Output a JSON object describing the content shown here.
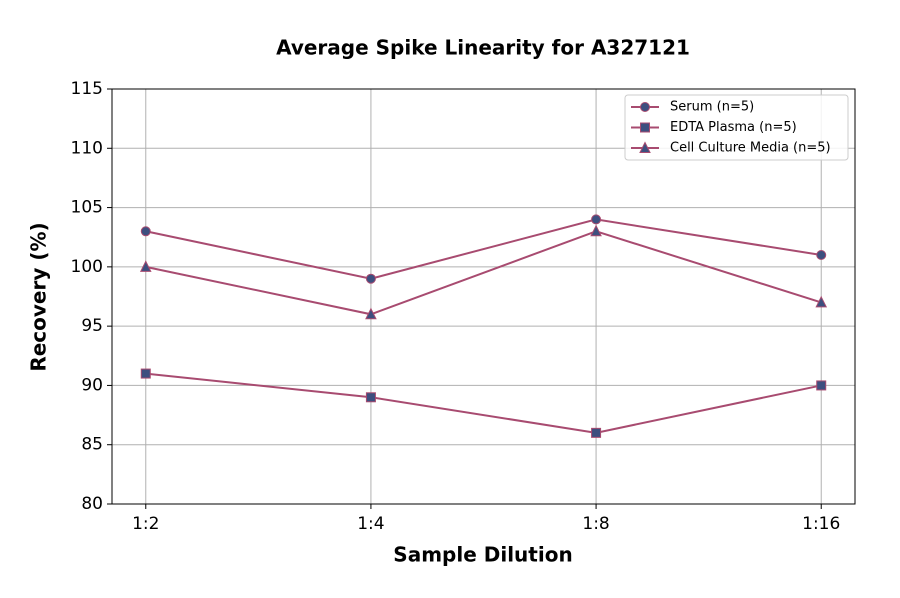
{
  "chart_data": {
    "type": "line",
    "title": "Average Spike Linearity for A327121",
    "xlabel": "Sample Dilution",
    "ylabel": "Recovery (%)",
    "categories": [
      "1:2",
      "1:4",
      "1:8",
      "1:16"
    ],
    "series": [
      {
        "name": "Serum (n=5)",
        "color": "#a84b70",
        "marker_color": "#3d4f7f",
        "marker": "circle",
        "values": [
          103,
          99,
          104,
          101
        ]
      },
      {
        "name": "EDTA Plasma (n=5)",
        "color": "#a84b70",
        "marker_color": "#3d4f7f",
        "marker": "square",
        "values": [
          91,
          89,
          86,
          90
        ]
      },
      {
        "name": "Cell Culture Media (n=5)",
        "color": "#a84b70",
        "marker_color": "#3d4f7f",
        "marker": "triangle",
        "values": [
          100,
          96,
          103,
          97
        ]
      }
    ],
    "ylim": [
      80,
      115
    ],
    "yticks": [
      80,
      85,
      90,
      95,
      100,
      105,
      110,
      115
    ],
    "grid": true,
    "legend": "upper right"
  }
}
